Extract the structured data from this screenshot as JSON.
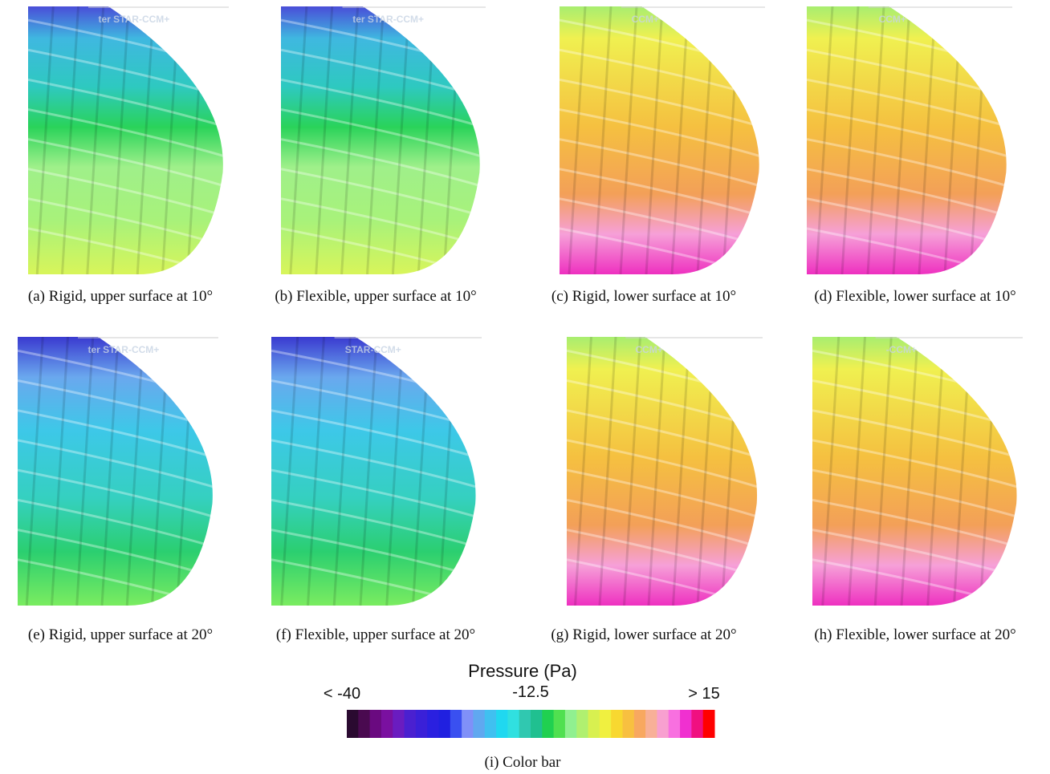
{
  "panels": [
    {
      "caption": "(a) Rigid, upper surface at 10°",
      "watermark": "ter STAR-CCM+"
    },
    {
      "caption": "(b) Flexible, upper surface at 10°",
      "watermark": "ter STAR-CCM+"
    },
    {
      "caption": "(c) Rigid, lower surface at 10°",
      "watermark": "CCM+"
    },
    {
      "caption": "(d) Flexible, lower surface at 10°",
      "watermark": "CCM+"
    },
    {
      "caption": "(e) Rigid, upper surface at 20°",
      "watermark": "ter STAR-CCM+"
    },
    {
      "caption": "(f) Flexible, upper surface at 20°",
      "watermark": "STAR-CCM+"
    },
    {
      "caption": "(g) Rigid, lower surface at 20°",
      "watermark": "CCM+"
    },
    {
      "caption": "(h) Flexible, lower surface at 20°",
      "watermark": "-CCM+"
    }
  ],
  "colorbar": {
    "title": "Pressure (Pa)",
    "min_label": "< -40",
    "mid_label": "-12.5",
    "max_label": "> 15",
    "caption": "(i) Color bar"
  }
}
